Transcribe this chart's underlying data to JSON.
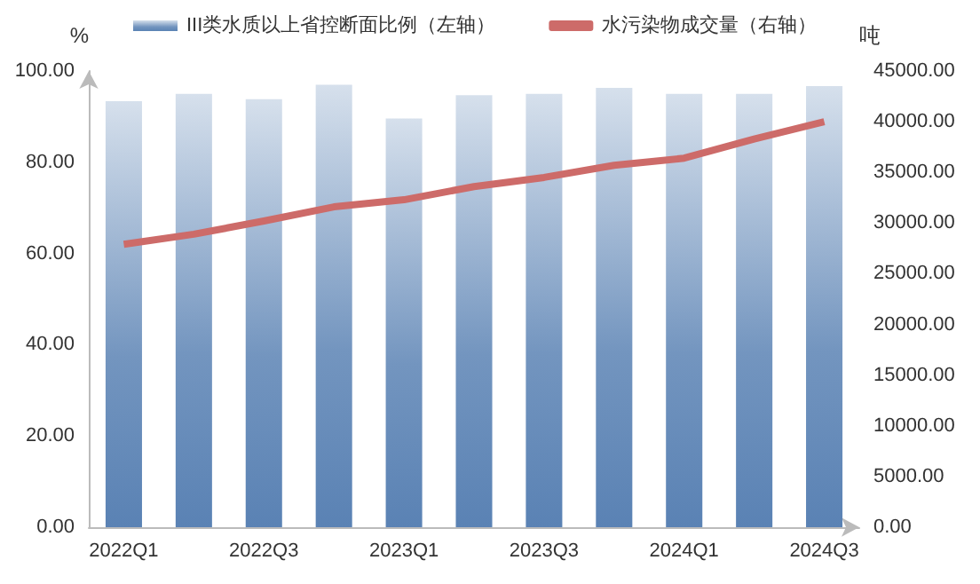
{
  "chart_data": {
    "type": "bar",
    "categories": [
      "2022Q1",
      null,
      "2022Q3",
      null,
      "2023Q1",
      null,
      "2023Q3",
      null,
      "2024Q1",
      null,
      "2024Q3"
    ],
    "ylabel": "%",
    "y2label": "吨",
    "series": [
      {
        "name": "III类水质以上省控断面比例（左轴）",
        "color": "#5a82b4",
        "values": [
          93.4,
          95.0,
          93.8,
          97.0,
          89.6,
          94.7,
          95.0,
          96.3,
          95.0,
          95.0,
          96.7
        ]
      },
      {
        "name": "水污染物成交量（右轴）",
        "type": "line",
        "axis": "y2",
        "color": "#cd6b69",
        "values": [
          27900,
          28900,
          30200,
          31600,
          32300,
          33600,
          34500,
          35700,
          36400,
          38300,
          40000
        ]
      }
    ],
    "ylim": [
      0,
      100
    ],
    "yticks": [
      {
        "value": 0,
        "label": "0.00"
      },
      {
        "value": 20,
        "label": "20.00"
      },
      {
        "value": 40,
        "label": "40.00"
      },
      {
        "value": 60,
        "label": "60.00"
      },
      {
        "value": 80,
        "label": "80.00"
      },
      {
        "value": 100,
        "label": "100.00"
      }
    ],
    "y2lim": [
      0,
      45000
    ],
    "y2ticks": [
      {
        "value": 0,
        "label": "0.00"
      },
      {
        "value": 5000,
        "label": "5000.00"
      },
      {
        "value": 10000,
        "label": "10000.00"
      },
      {
        "value": 15000,
        "label": "15000.00"
      },
      {
        "value": 20000,
        "label": "20000.00"
      },
      {
        "value": 25000,
        "label": "25000.00"
      },
      {
        "value": 30000,
        "label": "30000.00"
      },
      {
        "value": 35000,
        "label": "35000.00"
      },
      {
        "value": 40000,
        "label": "40000.00"
      },
      {
        "value": 45000,
        "label": "45000.00"
      }
    ],
    "grid": false,
    "legend": "top",
    "marker": "none"
  }
}
